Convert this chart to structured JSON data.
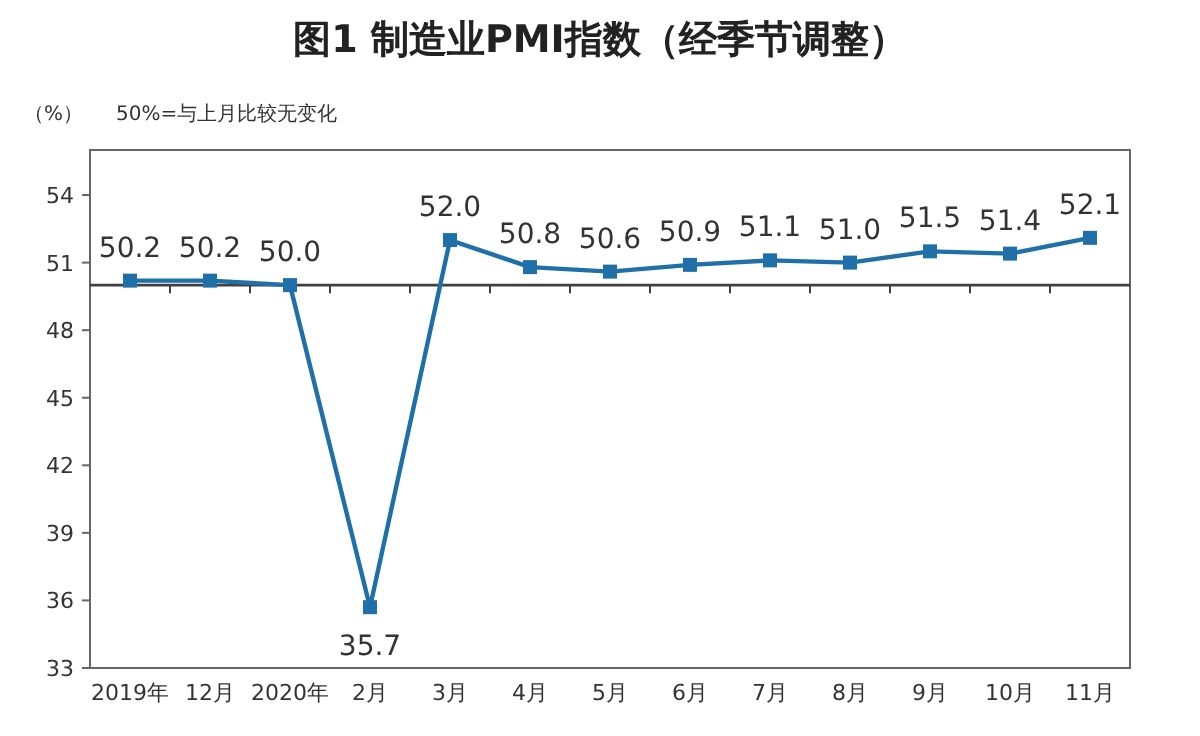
{
  "chart_data": {
    "type": "line",
    "title": "图1 制造业PMI指数（经季节调整）",
    "ylabel": "（%）",
    "annotations": [
      "50%=与上月比较无变化"
    ],
    "categories": [
      "2019年",
      "12月",
      "2020年",
      "2月",
      "3月",
      "4月",
      "5月",
      "6月",
      "7月",
      "8月",
      "9月",
      "10月",
      "11月"
    ],
    "series": [
      {
        "color": "#1f6fa8",
        "values": [
          50.2,
          50.2,
          50.0,
          35.7,
          52.0,
          50.8,
          50.6,
          50.9,
          51.1,
          51.0,
          51.5,
          51.4,
          52.1
        ],
        "value_labels": [
          "50.2",
          "50.2",
          "50.0",
          "35.7",
          "52.0",
          "50.8",
          "50.6",
          "50.9",
          "51.1",
          "51.0",
          "51.5",
          "51.4",
          "52.1"
        ]
      }
    ],
    "ylim": [
      33,
      56
    ],
    "yticks": [
      33,
      36,
      39,
      42,
      45,
      48,
      51,
      54
    ],
    "ref_lines": [
      {
        "axis": "y",
        "value": 50,
        "color": "#404040"
      }
    ],
    "marker": "square"
  }
}
